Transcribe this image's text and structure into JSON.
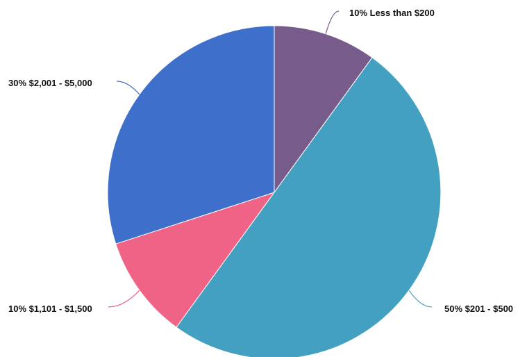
{
  "chart_data": {
    "type": "pie",
    "title": "",
    "start_angle_deg": 0,
    "direction": "clockwise",
    "slices": [
      {
        "label": "10% Less than $200",
        "category": "Less than $200",
        "value": 10,
        "color": "#765b8b"
      },
      {
        "label": "50% $201 - $500",
        "category": "$201 - $500",
        "value": 50,
        "color": "#43a0c0"
      },
      {
        "label": "10% $1,101 - $1,500",
        "category": "$1,101 - $1,500",
        "value": 10,
        "color": "#ee6386"
      },
      {
        "label": "30% $2,001 - $5,000",
        "category": "$2,001 - $5,000",
        "value": 30,
        "color": "#3d6fcb"
      }
    ],
    "legend": "none",
    "grid": false
  }
}
